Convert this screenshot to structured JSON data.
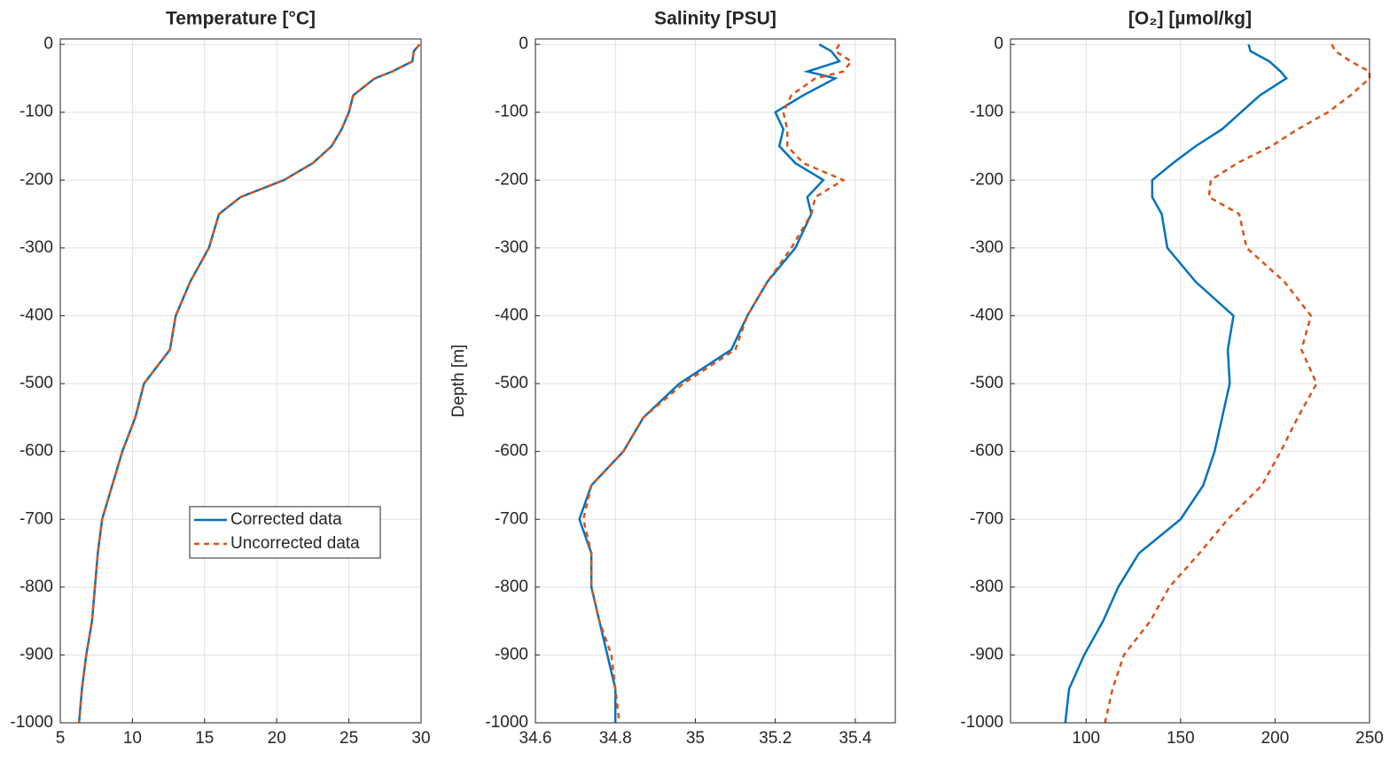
{
  "chart_data": [
    {
      "type": "line",
      "title": "Temperature [°C]",
      "grid": true,
      "legend": "lower center",
      "xlim": [
        5,
        30
      ],
      "xticks": [
        5,
        10,
        15,
        20,
        25,
        30
      ],
      "ylim": [
        -1000,
        8
      ],
      "yticks": [
        0,
        -100,
        -200,
        -300,
        -400,
        -500,
        -600,
        -700,
        -800,
        -900,
        -1000
      ],
      "y": [
        0,
        -10,
        -25,
        -40,
        -50,
        -75,
        -100,
        -125,
        -150,
        -175,
        -200,
        -225,
        -250,
        -300,
        -350,
        -400,
        -450,
        -500,
        -550,
        -600,
        -650,
        -700,
        -750,
        -800,
        -850,
        -900,
        -950,
        -1000
      ],
      "series": [
        {
          "name": "Corrected data",
          "color": "#0072bd",
          "linestyle": "solid",
          "values": [
            29.9,
            29.5,
            29.4,
            28.0,
            26.8,
            25.3,
            25.0,
            24.5,
            23.8,
            22.5,
            20.5,
            17.5,
            16.0,
            15.3,
            14.0,
            13.0,
            12.6,
            10.8,
            10.2,
            9.3,
            8.6,
            7.9,
            7.6,
            7.4,
            7.2,
            6.8,
            6.5,
            6.3
          ]
        },
        {
          "name": "Uncorrected data",
          "color": "#d95319",
          "linestyle": "dashed",
          "values": [
            29.9,
            29.5,
            29.4,
            28.0,
            26.8,
            25.3,
            25.0,
            24.5,
            23.8,
            22.5,
            20.5,
            17.5,
            16.0,
            15.3,
            14.0,
            13.0,
            12.6,
            10.8,
            10.2,
            9.3,
            8.6,
            7.9,
            7.6,
            7.4,
            7.2,
            6.8,
            6.5,
            6.3
          ]
        }
      ]
    },
    {
      "type": "line",
      "title": "Salinity [PSU]",
      "ylabel": "Depth [m]",
      "grid": true,
      "xlim": [
        34.6,
        35.5
      ],
      "xticks": [
        34.6,
        34.8,
        35,
        35.2,
        35.4
      ],
      "ylim": [
        -1000,
        8
      ],
      "yticks": [
        0,
        -100,
        -200,
        -300,
        -400,
        -500,
        -600,
        -700,
        -800,
        -900,
        -1000
      ],
      "y": [
        0,
        -10,
        -25,
        -40,
        -50,
        -75,
        -100,
        -125,
        -150,
        -175,
        -200,
        -225,
        -250,
        -300,
        -350,
        -400,
        -450,
        -500,
        -550,
        -600,
        -650,
        -700,
        -750,
        -800,
        -850,
        -900,
        -950,
        -1000
      ],
      "series": [
        {
          "name": "Corrected data",
          "color": "#0072bd",
          "linestyle": "solid",
          "values": [
            35.31,
            35.34,
            35.36,
            35.28,
            35.35,
            35.27,
            35.2,
            35.22,
            35.21,
            35.25,
            35.32,
            35.28,
            35.29,
            35.25,
            35.18,
            35.13,
            35.09,
            34.96,
            34.87,
            34.82,
            34.74,
            34.71,
            34.74,
            34.74,
            34.76,
            34.78,
            34.8,
            34.8
          ]
        },
        {
          "name": "Uncorrected data",
          "color": "#d95319",
          "linestyle": "dashed",
          "values": [
            35.36,
            35.35,
            35.39,
            35.37,
            35.3,
            35.24,
            35.22,
            35.23,
            35.23,
            35.27,
            35.37,
            35.3,
            35.29,
            35.24,
            35.18,
            35.13,
            35.1,
            34.97,
            34.87,
            34.82,
            34.74,
            34.72,
            34.74,
            34.74,
            34.76,
            34.79,
            34.8,
            34.81
          ]
        }
      ]
    },
    {
      "type": "line",
      "title": "[O₂] [µmol/kg]",
      "grid": true,
      "xlim": [
        60,
        250
      ],
      "xticks": [
        100,
        150,
        200,
        250
      ],
      "ylim": [
        -1000,
        8
      ],
      "yticks": [
        0,
        -100,
        -200,
        -300,
        -400,
        -500,
        -600,
        -700,
        -800,
        -900,
        -1000
      ],
      "y": [
        0,
        -10,
        -25,
        -40,
        -50,
        -75,
        -100,
        -125,
        -150,
        -175,
        -200,
        -225,
        -250,
        -300,
        -350,
        -400,
        -450,
        -500,
        -550,
        -600,
        -650,
        -700,
        -750,
        -800,
        -850,
        -900,
        -950,
        -1000
      ],
      "series": [
        {
          "name": "Corrected data",
          "color": "#0072bd",
          "linestyle": "solid",
          "values": [
            186,
            187,
            197,
            203,
            206,
            192,
            182,
            172,
            158,
            146,
            135,
            135,
            140,
            143,
            158,
            178,
            175,
            176,
            172,
            168,
            162,
            150,
            128,
            117,
            109,
            99,
            91,
            89
          ]
        },
        {
          "name": "Uncorrected data",
          "color": "#d95319",
          "linestyle": "dashed",
          "values": [
            230,
            232,
            240,
            250,
            250,
            240,
            228,
            212,
            198,
            180,
            166,
            165,
            181,
            185,
            205,
            219,
            214,
            222,
            212,
            203,
            193,
            175,
            160,
            144,
            134,
            120,
            114,
            110
          ]
        }
      ]
    }
  ]
}
